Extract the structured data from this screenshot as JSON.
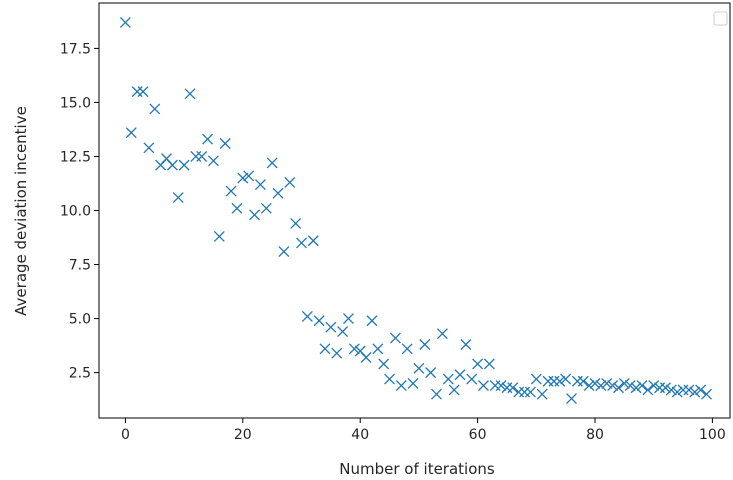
{
  "chart_data": {
    "type": "scatter",
    "title": "",
    "xlabel": "Number of iterations",
    "ylabel": "Average deviation incentive",
    "xlim": [
      -4.5,
      103
    ],
    "ylim": [
      0.4,
      19.6
    ],
    "xticks": [
      0,
      20,
      40,
      60,
      80,
      100
    ],
    "yticks": [
      2.5,
      5.0,
      7.5,
      10.0,
      12.5,
      15.0,
      17.5
    ],
    "xtick_labels": [
      "0",
      "20",
      "40",
      "60",
      "80",
      "100"
    ],
    "ytick_labels": [
      "2.5",
      "5.0",
      "7.5",
      "10.0",
      "12.5",
      "15.0",
      "17.5"
    ],
    "grid": false,
    "legend": {
      "position": "top-right",
      "entries": []
    },
    "marker": "x",
    "color": "#1f77b4",
    "series": [
      {
        "x": [
          0,
          1,
          2,
          3,
          4,
          5,
          6,
          7,
          8,
          9,
          10,
          11,
          12,
          13,
          14,
          15,
          16,
          17,
          18,
          19,
          20,
          21,
          22,
          23,
          24,
          25,
          26,
          27,
          28,
          29,
          30,
          31,
          32,
          33,
          34,
          35,
          36,
          37,
          38,
          39,
          40,
          41,
          42,
          43,
          44,
          45,
          46,
          47,
          48,
          49,
          50,
          51,
          52,
          53,
          54,
          55,
          56,
          57,
          58,
          59,
          60,
          61,
          62,
          63,
          64,
          65,
          66,
          67,
          68,
          69,
          70,
          71,
          72,
          73,
          74,
          75,
          76,
          77,
          78,
          79,
          80,
          81,
          82,
          83,
          84,
          85,
          86,
          87,
          88,
          89,
          90,
          91,
          92,
          93,
          94,
          95,
          96,
          97,
          98,
          99
        ],
        "y": [
          18.7,
          13.6,
          15.5,
          15.5,
          12.9,
          14.7,
          12.1,
          12.4,
          12.1,
          10.6,
          12.1,
          15.4,
          12.5,
          12.5,
          13.3,
          12.3,
          8.8,
          13.1,
          10.9,
          10.1,
          11.5,
          11.6,
          9.8,
          11.2,
          10.1,
          12.2,
          10.8,
          8.1,
          11.3,
          9.4,
          8.5,
          5.1,
          8.6,
          4.9,
          3.6,
          4.6,
          3.4,
          4.4,
          5.0,
          3.6,
          3.5,
          3.2,
          4.9,
          3.6,
          2.9,
          2.2,
          4.1,
          1.9,
          3.6,
          2.0,
          2.7,
          3.8,
          2.5,
          1.5,
          4.3,
          2.2,
          1.7,
          2.4,
          3.8,
          2.2,
          2.9,
          1.9,
          2.9,
          1.9,
          1.9,
          1.8,
          1.8,
          1.6,
          1.6,
          1.6,
          2.2,
          1.5,
          2.1,
          2.1,
          2.1,
          2.2,
          1.3,
          2.1,
          2.1,
          1.9,
          2.0,
          1.9,
          2.0,
          1.9,
          1.8,
          2.0,
          1.9,
          1.8,
          1.9,
          1.7,
          1.9,
          1.8,
          1.8,
          1.7,
          1.6,
          1.7,
          1.7,
          1.6,
          1.7,
          1.5
        ]
      }
    ]
  }
}
